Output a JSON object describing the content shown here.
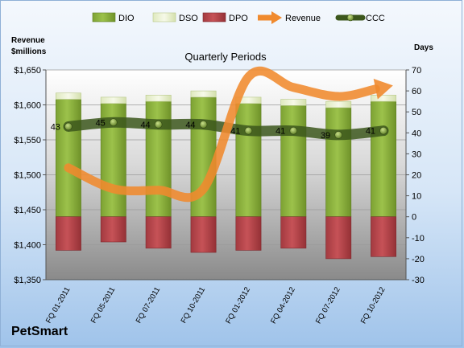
{
  "chart_data": {
    "type": "bar",
    "subtitle": "Quarterly Periods",
    "company": "PetSmart",
    "left_axis_title": [
      "Revenue",
      "$millions"
    ],
    "right_axis_title": "Days",
    "categories": [
      "FQ 01-2011",
      "FQ 05-2011",
      "FQ 07-2011",
      "FQ 10-2011",
      "FQ 01-2012",
      "FQ 04-2012",
      "FQ 07-2012",
      "FQ 10-2012"
    ],
    "left_axis": {
      "min": 1350,
      "max": 1650,
      "step": 50,
      "tick_labels": [
        "$1,350",
        "$1,400",
        "$1,450",
        "$1,500",
        "$1,550",
        "$1,600",
        "$1,650"
      ]
    },
    "right_axis": {
      "min": -30,
      "max": 70,
      "step": 10,
      "tick_labels": [
        "-30",
        "-20",
        "-10",
        "0",
        "10",
        "20",
        "30",
        "40",
        "50",
        "60",
        "70"
      ]
    },
    "legend": {
      "position": "top",
      "entries": [
        "DIO",
        "DSO",
        "DPO",
        "Revenue",
        "CCC"
      ]
    },
    "series": [
      {
        "name": "DIO",
        "axis": "right",
        "kind": "stacked-bar",
        "color": "#8db23e",
        "values": [
          56,
          54,
          55,
          57,
          54,
          53,
          52,
          55
        ]
      },
      {
        "name": "DSO",
        "axis": "right",
        "kind": "stacked-bar",
        "color": "#e6efc9",
        "values": [
          3,
          3,
          3,
          3,
          3,
          3,
          3,
          3
        ]
      },
      {
        "name": "DPO",
        "axis": "right",
        "kind": "stacked-bar-negative",
        "color": "#b8454b",
        "values": [
          -16,
          -12,
          -15,
          -17,
          -16,
          -15,
          -20,
          -19
        ]
      },
      {
        "name": "Revenue",
        "axis": "left",
        "kind": "line",
        "color": "#f08a2e",
        "values": [
          1510,
          1480,
          1478,
          1480,
          1640,
          1625,
          1612,
          1625
        ]
      },
      {
        "name": "CCC",
        "axis": "right",
        "kind": "line",
        "color": "#3f5a1e",
        "values": [
          43,
          45,
          44,
          44,
          41,
          41,
          39,
          41
        ],
        "labels": [
          "43",
          "45",
          "44",
          "44",
          "41",
          "41",
          "39",
          "41"
        ]
      }
    ]
  }
}
